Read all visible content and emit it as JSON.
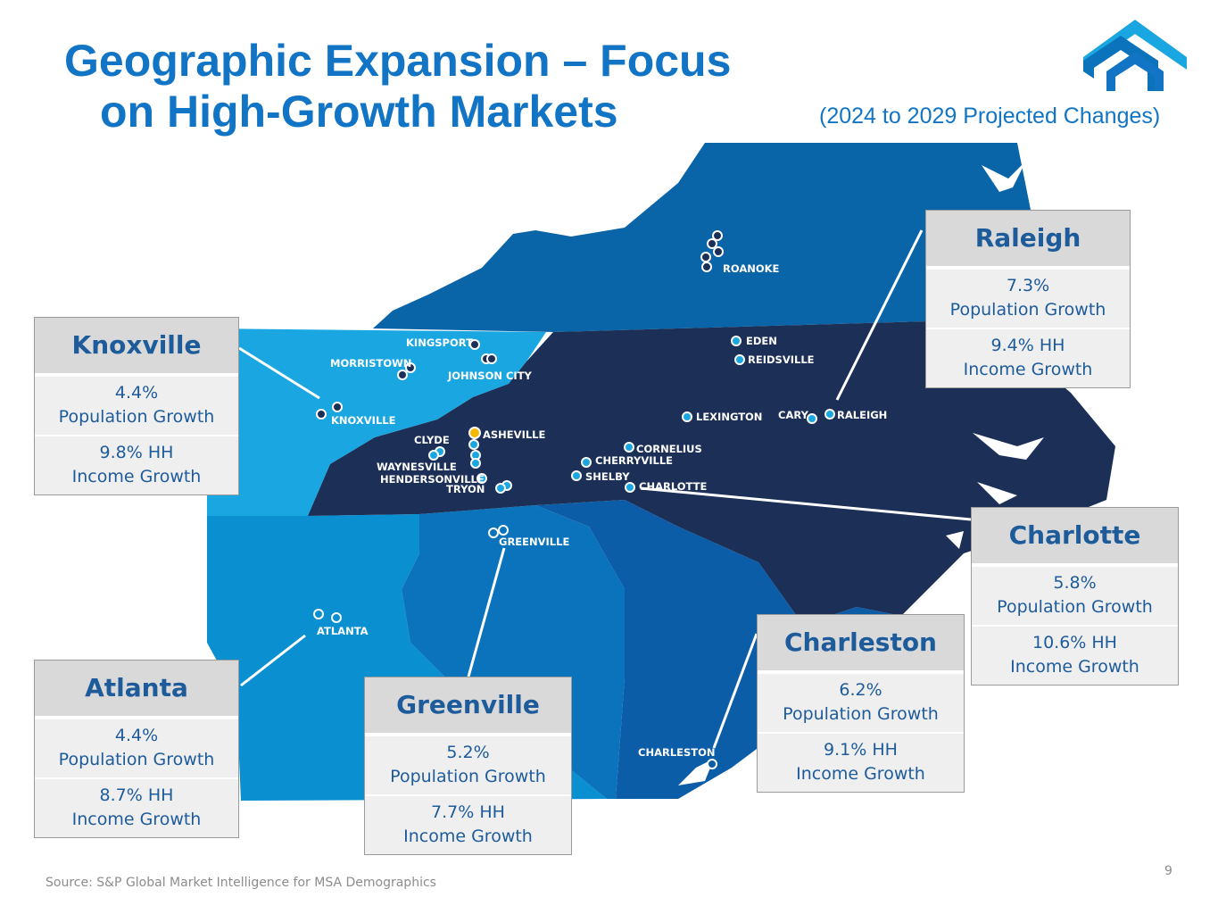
{
  "title": {
    "line1": "Geographic Expansion – Focus",
    "line2": "on High-Growth Markets"
  },
  "subtitle": "(2024 to 2029 Projected Changes)",
  "colors": {
    "title": "#1274c4",
    "region_north": "#0a64a8",
    "region_piedmont": "#1b2f57",
    "region_knoxville": "#1aa7e1",
    "region_atlanta": "#0a8fd0",
    "region_greenville": "#0b73bb",
    "region_charleston": "#0b5da8",
    "callout_text": "#1d5b9b"
  },
  "logo": {
    "name": "company-logo-icon"
  },
  "cities": [
    {
      "name": "ROANOKE"
    },
    {
      "name": "EDEN"
    },
    {
      "name": "REIDSVILLE"
    },
    {
      "name": "KINGSPORT"
    },
    {
      "name": "MORRISTOWN"
    },
    {
      "name": "JOHNSON CITY"
    },
    {
      "name": "KNOXVILLE"
    },
    {
      "name": "LEXINGTON"
    },
    {
      "name": "CARY"
    },
    {
      "name": "RALEIGH"
    },
    {
      "name": "ASHEVILLE"
    },
    {
      "name": "CLYDE"
    },
    {
      "name": "CORNELIUS"
    },
    {
      "name": "CHERRYVILLE"
    },
    {
      "name": "WAYNESVILLE"
    },
    {
      "name": "HENDERSONVILLE"
    },
    {
      "name": "SHELBY"
    },
    {
      "name": "TRYON"
    },
    {
      "name": "CHARLOTTE"
    },
    {
      "name": "GREENVILLE"
    },
    {
      "name": "ATLANTA"
    },
    {
      "name": "CHARLESTON"
    }
  ],
  "callouts": {
    "knoxville": {
      "name": "Knoxville",
      "pop_value": "4.4%",
      "pop_label": "Population Growth",
      "inc_value": "9.8% HH",
      "inc_label": "Income Growth"
    },
    "raleigh": {
      "name": "Raleigh",
      "pop_value": "7.3%",
      "pop_label": "Population Growth",
      "inc_value": "9.4% HH",
      "inc_label": "Income Growth"
    },
    "charlotte": {
      "name": "Charlotte",
      "pop_value": "5.8%",
      "pop_label": "Population Growth",
      "inc_value": "10.6% HH",
      "inc_label": "Income Growth"
    },
    "charleston": {
      "name": "Charleston",
      "pop_value": "6.2%",
      "pop_label": "Population Growth",
      "inc_value": "9.1% HH",
      "inc_label": "Income Growth"
    },
    "greenville": {
      "name": "Greenville",
      "pop_value": "5.2%",
      "pop_label": "Population Growth",
      "inc_value": "7.7% HH",
      "inc_label": "Income Growth"
    },
    "atlanta": {
      "name": "Atlanta",
      "pop_value": "4.4%",
      "pop_label": "Population Growth",
      "inc_value": "8.7% HH",
      "inc_label": "Income Growth"
    }
  },
  "footer": {
    "source": "Source: S&P Global Market Intelligence for MSA Demographics",
    "page_number": "9"
  }
}
